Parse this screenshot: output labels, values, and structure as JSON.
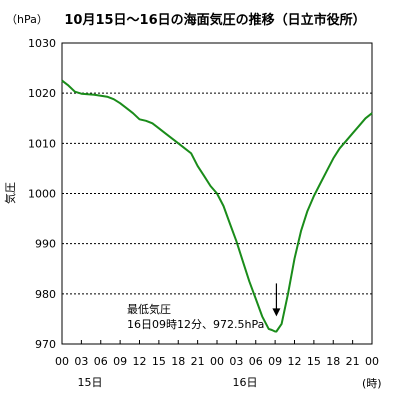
{
  "chart_data": {
    "type": "line",
    "title": "10月15日〜16日の海面気圧の推移（日立市役所）",
    "unit_label": "（hPa）",
    "ylabel": "気圧",
    "x_unit_label": "(時)",
    "ylim": [
      970,
      1030
    ],
    "y_ticks": [
      970,
      980,
      990,
      1000,
      1010,
      1020,
      1030
    ],
    "x_tick_labels": [
      "00",
      "03",
      "06",
      "09",
      "12",
      "15",
      "18",
      "21",
      "00",
      "03",
      "06",
      "09",
      "12",
      "15",
      "18",
      "21",
      "00"
    ],
    "day_labels": [
      "15日",
      "16日"
    ],
    "grid": true,
    "line_color": "#1a8c1a",
    "series": [
      {
        "x_hours": [
          0,
          1,
          2,
          3,
          4,
          5,
          6,
          7,
          8,
          9,
          10,
          11,
          12,
          13,
          14,
          15,
          16,
          17,
          18,
          19,
          20,
          21,
          22,
          23,
          24,
          25,
          26,
          27,
          28,
          29,
          30,
          31,
          32,
          32.5,
          33,
          33.2,
          34,
          35,
          36,
          37,
          38,
          39,
          40,
          41,
          42,
          43,
          44,
          45,
          46,
          47,
          48
        ],
        "values": [
          1022.5,
          1021.5,
          1020.3,
          1019.9,
          1019.8,
          1019.7,
          1019.5,
          1019.3,
          1018.8,
          1018.0,
          1017.0,
          1016.0,
          1014.8,
          1014.5,
          1014.0,
          1013.0,
          1012.0,
          1011.0,
          1010.0,
          1009.0,
          1008.0,
          1005.5,
          1003.5,
          1001.5,
          1000.0,
          997.5,
          994.0,
          990.5,
          986.5,
          982.5,
          979.0,
          975.5,
          973.0,
          972.8,
          972.5,
          972.5,
          974.0,
          980.0,
          987.0,
          992.5,
          996.5,
          999.5,
          1002.0,
          1004.5,
          1007.0,
          1009.0,
          1010.5,
          1012.0,
          1013.5,
          1015.0,
          1016.0
        ]
      }
    ],
    "annotation": {
      "line1": "最低気圧",
      "line2": "16日09時12分、972.5hPa",
      "arrow_target_hour": 33.2,
      "arrow_target_value": 975.5
    }
  }
}
